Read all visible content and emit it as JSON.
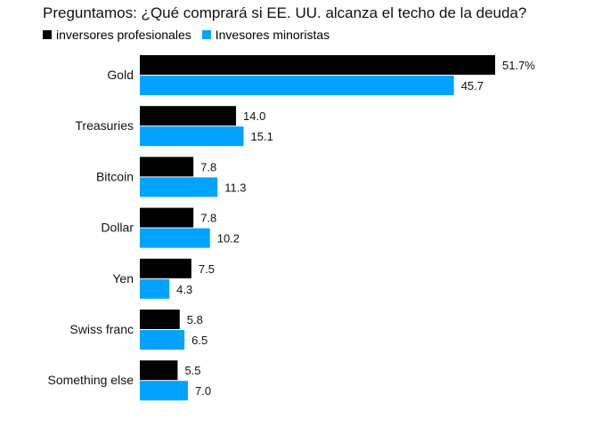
{
  "colors": {
    "professional": "#000000",
    "retail": "#00a3ff"
  },
  "chart_data": {
    "type": "bar",
    "orientation": "horizontal",
    "title": "Preguntamos: ¿Qué comprará si EE. UU. alcanza el techo de la deuda?",
    "legend_position": "top-left",
    "categories": [
      "Gold",
      "Treasuries",
      "Bitcoin",
      "Dollar",
      "Yen",
      "Swiss franc",
      "Something else"
    ],
    "series": [
      {
        "name": "inversores profesionales",
        "values": [
          51.7,
          14.0,
          7.8,
          7.8,
          7.5,
          5.8,
          5.5
        ],
        "labels": [
          "51.7%",
          "14.0",
          "7.8",
          "7.8",
          "7.5",
          "5.8",
          "5.5"
        ]
      },
      {
        "name": "Invesores minoristas",
        "values": [
          45.7,
          15.1,
          11.3,
          10.2,
          4.3,
          6.5,
          7.0
        ],
        "labels": [
          "45.7",
          "15.1",
          "11.3",
          "10.2",
          "4.3",
          "6.5",
          "7.0"
        ]
      }
    ],
    "xlim": [
      0,
      51.7
    ],
    "grid": false
  }
}
